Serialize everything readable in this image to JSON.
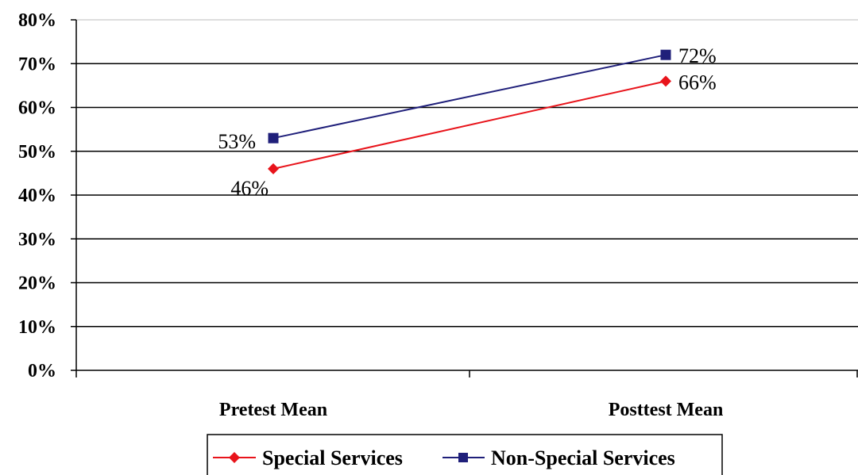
{
  "chart_data": {
    "type": "line",
    "categories": [
      "Pretest Mean",
      "Posttest Mean"
    ],
    "series": [
      {
        "name": "Special Services",
        "values": [
          46,
          66
        ],
        "labels": [
          "46%",
          "66%"
        ],
        "color": "#e8141b",
        "marker": "diamond"
      },
      {
        "name": "Non-Special Services",
        "values": [
          53,
          72
        ],
        "labels": [
          "53%",
          "72%"
        ],
        "color": "#1f1f7a",
        "marker": "square"
      }
    ],
    "y_ticks": [
      "0%",
      "10%",
      "20%",
      "30%",
      "40%",
      "50%",
      "60%",
      "70%",
      "80%"
    ],
    "ylim": [
      0,
      80
    ],
    "grid": true,
    "legend": "bottom"
  }
}
